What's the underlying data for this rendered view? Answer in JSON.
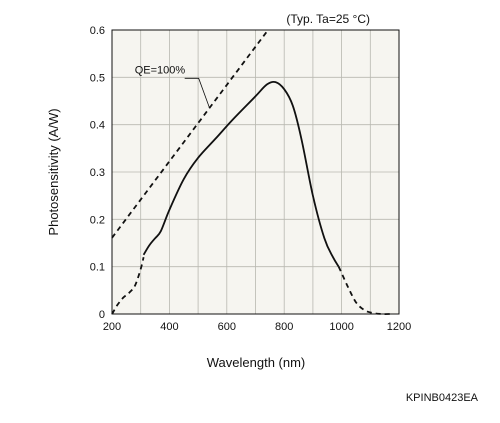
{
  "chart_data": {
    "type": "line",
    "annotation_top_right": "(Typ. Ta=25 °C)",
    "xlabel": "Wavelength (nm)",
    "ylabel": "Photosensitivity (A/W)",
    "xlim": [
      200,
      1200
    ],
    "ylim": [
      0,
      0.6
    ],
    "x_ticks": [
      200,
      400,
      600,
      800,
      1000,
      1200
    ],
    "y_ticks": [
      0,
      0.1,
      0.2,
      0.3,
      0.4,
      0.5,
      0.6
    ],
    "y_tick_labels": [
      "0",
      "0.1",
      "0.2",
      "0.3",
      "0.4",
      "0.5",
      "0.6"
    ],
    "grid": true,
    "plot_background": "#f6f5f0",
    "series": [
      {
        "name": "",
        "style": "dashed",
        "points": [
          [
            200,
            0.0
          ],
          [
            220,
            0.02
          ],
          [
            240,
            0.035
          ],
          [
            260,
            0.045
          ],
          [
            280,
            0.06
          ],
          [
            300,
            0.095
          ],
          [
            310,
            0.12
          ]
        ]
      },
      {
        "name": "",
        "style": "solid",
        "points": [
          [
            310,
            0.125
          ],
          [
            330,
            0.145
          ],
          [
            350,
            0.16
          ],
          [
            370,
            0.175
          ],
          [
            400,
            0.22
          ],
          [
            450,
            0.285
          ],
          [
            500,
            0.33
          ],
          [
            560,
            0.37
          ],
          [
            620,
            0.41
          ],
          [
            700,
            0.46
          ],
          [
            740,
            0.485
          ],
          [
            770,
            0.49
          ],
          [
            800,
            0.475
          ],
          [
            830,
            0.44
          ],
          [
            860,
            0.37
          ],
          [
            900,
            0.25
          ],
          [
            940,
            0.16
          ],
          [
            970,
            0.12
          ],
          [
            990,
            0.1
          ]
        ]
      },
      {
        "name": "",
        "style": "dashed",
        "points": [
          [
            990,
            0.1
          ],
          [
            1020,
            0.06
          ],
          [
            1050,
            0.025
          ],
          [
            1080,
            0.008
          ],
          [
            1110,
            0.002
          ],
          [
            1140,
            0.0
          ],
          [
            1170,
            0.0
          ]
        ]
      },
      {
        "name": "QE=100%",
        "style": "dashed",
        "points": [
          [
            200,
            0.161
          ],
          [
            740,
            0.597
          ]
        ]
      }
    ],
    "annotations": [
      {
        "text": "QE=100%",
        "x": 300,
        "y": 0.5,
        "leader_to": [
          540,
          0.435
        ]
      }
    ],
    "footer_code": "KPINB0423EA"
  }
}
